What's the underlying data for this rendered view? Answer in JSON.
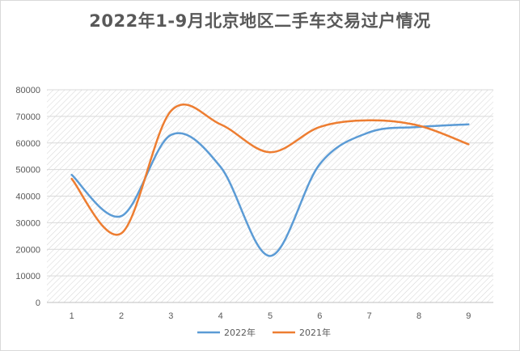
{
  "chart_data": {
    "type": "line",
    "title": "2022年1-9月北京地区二手车交易过户情况",
    "categories": [
      "1",
      "2",
      "3",
      "4",
      "5",
      "6",
      "7",
      "8",
      "9"
    ],
    "ylim": [
      0,
      80000
    ],
    "yticks": [
      "0",
      "10000",
      "20000",
      "30000",
      "40000",
      "50000",
      "60000",
      "70000",
      "80000"
    ],
    "series": [
      {
        "name": "2022年",
        "color": "#5b9bd5",
        "values": [
          48000,
          32500,
          63000,
          51000,
          17500,
          52000,
          64000,
          66000,
          67000
        ]
      },
      {
        "name": "2021年",
        "color": "#ed7d31",
        "values": [
          46500,
          26000,
          72000,
          67000,
          56500,
          66000,
          68500,
          66500,
          59500
        ]
      }
    ],
    "legend": "bottom",
    "grid": true
  }
}
